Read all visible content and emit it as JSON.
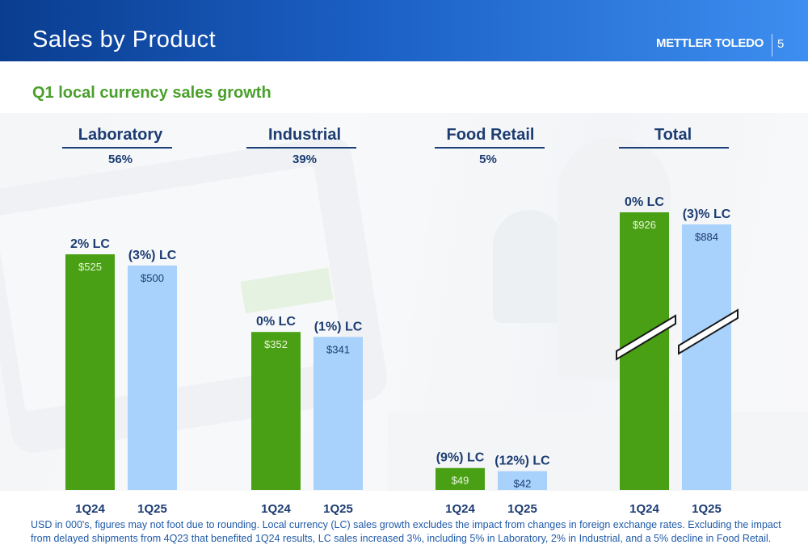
{
  "header": {
    "title": "Sales by Product",
    "brand": "METTLER TOLEDO",
    "page_number": "5"
  },
  "subtitle": "Q1 local currency sales growth",
  "footnote": "USD in 000's, figures may not foot due to rounding. Local currency (LC) sales growth excludes the impact from changes in foreign exchange rates. Excluding the impact from delayed shipments from 4Q23 that benefited 1Q24 results, LC sales increased 3%, including 5% in Laboratory, 2% in Industrial, and a 5% decline in Food Retail.",
  "colors": {
    "q24_bar": "#4aa014",
    "q25_bar": "#a8d1fb",
    "header_dark": "#0a3d8f",
    "header_light": "#3d8ef0",
    "subtitle_green": "#4aa02c",
    "label_navy": "#1c3c72"
  },
  "chart_data": {
    "type": "bar",
    "groups": [
      {
        "name": "Laboratory",
        "share": "56%",
        "categories": [
          "1Q24",
          "1Q25"
        ],
        "values": [
          525,
          500
        ],
        "value_labels": [
          "$525",
          "$500"
        ],
        "growth_labels": [
          "2% LC",
          "(3%) LC"
        ],
        "axis_break": false
      },
      {
        "name": "Industrial",
        "share": "39%",
        "categories": [
          "1Q24",
          "1Q25"
        ],
        "values": [
          352,
          341
        ],
        "value_labels": [
          "$352",
          "$341"
        ],
        "growth_labels": [
          "0% LC",
          "(1%) LC"
        ],
        "axis_break": false
      },
      {
        "name": "Food Retail",
        "share": "5%",
        "categories": [
          "1Q24",
          "1Q25"
        ],
        "values": [
          49,
          42
        ],
        "value_labels": [
          "$49",
          "$42"
        ],
        "growth_labels": [
          "(9%) LC",
          "(12%) LC"
        ],
        "axis_break": false
      },
      {
        "name": "Total",
        "share": "",
        "categories": [
          "1Q24",
          "1Q25"
        ],
        "values": [
          926,
          884
        ],
        "value_labels": [
          "$926",
          "$884"
        ],
        "growth_labels": [
          "0% LC",
          "(3)% LC"
        ],
        "axis_break": true
      }
    ],
    "series": [
      {
        "name": "1Q24",
        "values": [
          525,
          352,
          49,
          926
        ]
      },
      {
        "name": "1Q25",
        "values": [
          500,
          341,
          42,
          884
        ]
      }
    ],
    "categories": [
      "Laboratory",
      "Industrial",
      "Food Retail",
      "Total"
    ],
    "grid": false,
    "legend": "none"
  }
}
